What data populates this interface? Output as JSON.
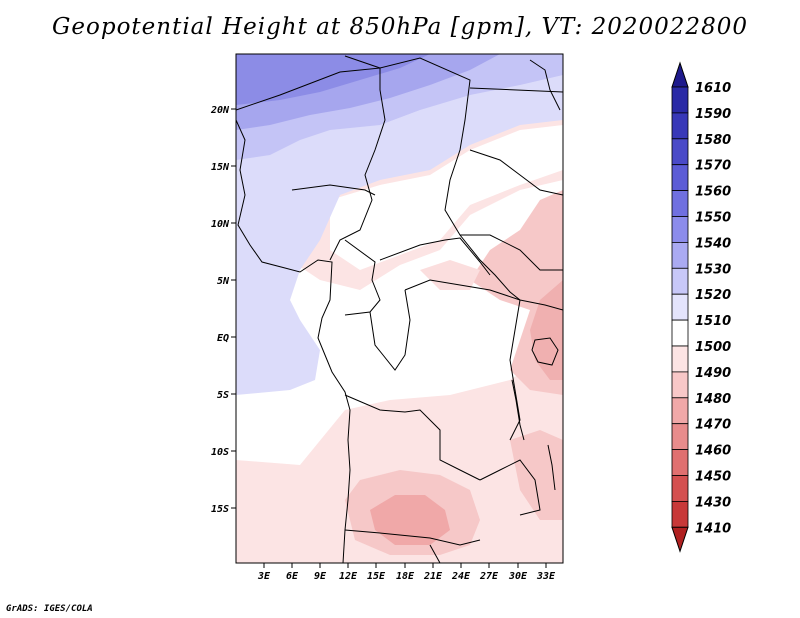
{
  "title": "Geopotential Height at 850hPa [gpm], VT: 2020022800",
  "credit": "GrADS: IGES/COLA",
  "map": {
    "lon_labels": [
      "3E",
      "6E",
      "9E",
      "12E",
      "15E",
      "18E",
      "21E",
      "24E",
      "27E",
      "30E",
      "33E"
    ],
    "lat_labels": [
      "20N",
      "15N",
      "10N",
      "5N",
      "EQ",
      "5S",
      "10S",
      "15S"
    ]
  },
  "colorbar": {
    "labels": [
      "1610",
      "1590",
      "1580",
      "1570",
      "1560",
      "1550",
      "1540",
      "1530",
      "1520",
      "1510",
      "1500",
      "1490",
      "1480",
      "1470",
      "1460",
      "1450",
      "1430",
      "1410"
    ],
    "colors": [
      "#1e1a8c",
      "#2a2aa6",
      "#3838b8",
      "#4a4ac8",
      "#5c5cd6",
      "#7070e0",
      "#8c8ceb",
      "#aaaaf2",
      "#c8c8f8",
      "#e4e4fc",
      "#ffffff",
      "#fce4e4",
      "#f8c8c8",
      "#f0a8a8",
      "#e88c8c",
      "#e07070",
      "#d45050",
      "#c83838",
      "#b02020"
    ]
  }
}
